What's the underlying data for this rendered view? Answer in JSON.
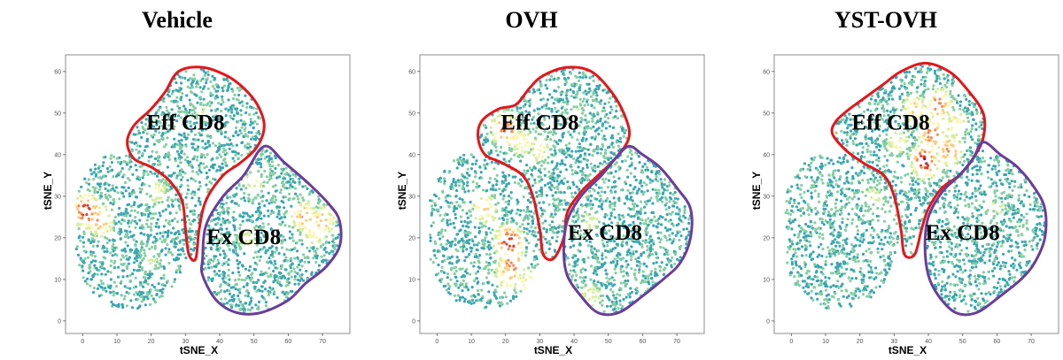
{
  "colors": {
    "eff_gate": "#e4161b",
    "ex_gate": "#6a3d9a",
    "frame": "#8c8c8c",
    "density": [
      "#3f69b1",
      "#3aa6b2",
      "#85cfa2",
      "#d6ee9b",
      "#fdf5b2",
      "#fdca7c",
      "#f48c52",
      "#d9472f",
      "#a40d3a"
    ]
  },
  "chart_data": [
    {
      "type": "scatter",
      "title": "Vehicle",
      "xlabel": "tSNE_X",
      "ylabel": "tSNE_Y",
      "xlim": [
        -5,
        78
      ],
      "ylim": [
        -3,
        64
      ],
      "xticks": [
        0,
        10,
        20,
        30,
        40,
        50,
        60,
        70
      ],
      "yticks": [
        0,
        10,
        20,
        30,
        40,
        50,
        60
      ],
      "grid": false,
      "gates": [
        {
          "name": "Eff CD8",
          "label_x": 30,
          "label_y": 46,
          "polygon": [
            [
              15,
              47
            ],
            [
              20,
              51
            ],
            [
              24,
              55
            ],
            [
              28,
              60
            ],
            [
              35,
              61
            ],
            [
              42,
              59
            ],
            [
              47,
              56
            ],
            [
              51,
              52
            ],
            [
              53,
              47
            ],
            [
              51,
              42
            ],
            [
              46,
              38
            ],
            [
              41,
              35
            ],
            [
              36,
              29
            ],
            [
              34,
              22
            ],
            [
              33,
              15
            ],
            [
              31,
              16
            ],
            [
              30,
              22
            ],
            [
              29,
              29
            ],
            [
              25,
              34
            ],
            [
              20,
              37
            ],
            [
              15,
              39
            ],
            [
              13,
              43
            ]
          ]
        },
        {
          "name": "Ex CD8",
          "label_x": 47,
          "label_y": 18.5,
          "polygon": [
            [
              53,
              42
            ],
            [
              59,
              38
            ],
            [
              66,
              33
            ],
            [
              72,
              28
            ],
            [
              75,
              24
            ],
            [
              75,
              18
            ],
            [
              71,
              13
            ],
            [
              65,
              9
            ],
            [
              60,
              5
            ],
            [
              52,
              2
            ],
            [
              45,
              2
            ],
            [
              39,
              5
            ],
            [
              35,
              11
            ],
            [
              35,
              15
            ],
            [
              36,
              23
            ],
            [
              41,
              30
            ],
            [
              47,
              35
            ]
          ]
        }
      ],
      "hotspots": [
        {
          "x": 1,
          "y": 26.5,
          "density": 0.95
        },
        {
          "x": 5,
          "y": 24,
          "density": 0.7
        },
        {
          "x": 65,
          "y": 25,
          "density": 0.72
        },
        {
          "x": 70,
          "y": 24,
          "density": 0.65
        },
        {
          "x": 68,
          "y": 22,
          "density": 0.6
        },
        {
          "x": 22,
          "y": 31,
          "density": 0.45
        },
        {
          "x": 50,
          "y": 33,
          "density": 0.45
        },
        {
          "x": 48,
          "y": 20,
          "density": 0.4
        },
        {
          "x": 35,
          "y": 50,
          "density": 0.3
        },
        {
          "x": 20,
          "y": 15,
          "density": 0.35
        }
      ]
    },
    {
      "type": "scatter",
      "title": "OVH",
      "xlabel": "tSNE_X",
      "ylabel": "tSNE_Y",
      "xlim": [
        -5,
        78
      ],
      "ylim": [
        -3,
        64
      ],
      "xticks": [
        0,
        10,
        20,
        30,
        40,
        50,
        60,
        70
      ],
      "yticks": [
        0,
        10,
        20,
        30,
        40,
        50,
        60
      ],
      "grid": false,
      "gates": [
        {
          "name": "Eff CD8",
          "label_x": 30,
          "label_y": 46,
          "polygon": [
            [
              13,
              48
            ],
            [
              18,
              51
            ],
            [
              23,
              52
            ],
            [
              27,
              56
            ],
            [
              31,
              59
            ],
            [
              38,
              61
            ],
            [
              45,
              60
            ],
            [
              51,
              55
            ],
            [
              55,
              49
            ],
            [
              56,
              44
            ],
            [
              52,
              39
            ],
            [
              47,
              35
            ],
            [
              42,
              31
            ],
            [
              38,
              26
            ],
            [
              37,
              20
            ],
            [
              34,
              15
            ],
            [
              31,
              16
            ],
            [
              30,
              22
            ],
            [
              28,
              30
            ],
            [
              25,
              35
            ],
            [
              19,
              38
            ],
            [
              14,
              40
            ],
            [
              12,
              44
            ]
          ]
        },
        {
          "name": "Ex CD8",
          "label_x": 49,
          "label_y": 19.5,
          "polygon": [
            [
              56,
              42
            ],
            [
              60,
              40
            ],
            [
              65,
              37
            ],
            [
              70,
              32
            ],
            [
              74,
              27
            ],
            [
              74,
              20
            ],
            [
              71,
              14
            ],
            [
              66,
              10
            ],
            [
              60,
              6
            ],
            [
              53,
              2
            ],
            [
              47,
              2
            ],
            [
              42,
              6
            ],
            [
              38,
              11
            ],
            [
              37,
              17
            ],
            [
              38,
              24
            ],
            [
              42,
              30
            ],
            [
              48,
              35
            ],
            [
              52,
              39
            ]
          ]
        }
      ],
      "hotspots": [
        {
          "x": 20,
          "y": 46,
          "density": 0.85
        },
        {
          "x": 25,
          "y": 43,
          "density": 0.55
        },
        {
          "x": 21,
          "y": 19,
          "density": 0.95
        },
        {
          "x": 22,
          "y": 14,
          "density": 0.82
        },
        {
          "x": 21,
          "y": 11,
          "density": 0.7
        },
        {
          "x": 27,
          "y": 9,
          "density": 0.6
        },
        {
          "x": 14,
          "y": 27,
          "density": 0.6
        },
        {
          "x": 30,
          "y": 41,
          "density": 0.5
        },
        {
          "x": 45,
          "y": 24,
          "density": 0.4
        },
        {
          "x": 40,
          "y": 50,
          "density": 0.35
        },
        {
          "x": 45,
          "y": 6,
          "density": 0.45
        }
      ]
    },
    {
      "type": "scatter",
      "title": "YST-OVH",
      "xlabel": "tSNE_X",
      "ylabel": "tSNE_Y",
      "xlim": [
        -5,
        78
      ],
      "ylim": [
        -3,
        64
      ],
      "xticks": [
        0,
        10,
        20,
        30,
        40,
        50,
        60,
        70
      ],
      "yticks": [
        0,
        10,
        20,
        30,
        40,
        50,
        60
      ],
      "grid": false,
      "gates": [
        {
          "name": "Eff CD8",
          "label_x": 29,
          "label_y": 46,
          "polygon": [
            [
              13,
              48
            ],
            [
              17,
              51
            ],
            [
              22,
              54
            ],
            [
              27,
              57
            ],
            [
              32,
              60
            ],
            [
              39,
              62
            ],
            [
              46,
              60
            ],
            [
              51,
              56
            ],
            [
              56,
              50
            ],
            [
              56,
              44
            ],
            [
              53,
              39
            ],
            [
              49,
              35
            ],
            [
              44,
              32
            ],
            [
              40,
              27
            ],
            [
              38,
              22
            ],
            [
              36,
              16
            ],
            [
              33,
              16
            ],
            [
              32,
              22
            ],
            [
              30,
              30
            ],
            [
              27,
              35
            ],
            [
              21,
              38
            ],
            [
              16,
              41
            ],
            [
              12,
              45
            ]
          ]
        },
        {
          "name": "Ex CD8",
          "label_x": 50,
          "label_y": 19.5,
          "polygon": [
            [
              56,
              43
            ],
            [
              61,
              40
            ],
            [
              66,
              37
            ],
            [
              71,
              32
            ],
            [
              74,
              27
            ],
            [
              74,
              20
            ],
            [
              71,
              14
            ],
            [
              67,
              10
            ],
            [
              61,
              6
            ],
            [
              54,
              2
            ],
            [
              48,
              2
            ],
            [
              43,
              6
            ],
            [
              40,
              11
            ],
            [
              39,
              18
            ],
            [
              40,
              25
            ],
            [
              44,
              31
            ],
            [
              49,
              35
            ],
            [
              53,
              39
            ]
          ]
        }
      ],
      "hotspots": [
        {
          "x": 39,
          "y": 38.5,
          "density": 0.95
        },
        {
          "x": 41,
          "y": 45,
          "density": 0.82
        },
        {
          "x": 43,
          "y": 52,
          "density": 0.78
        },
        {
          "x": 46,
          "y": 41,
          "density": 0.75
        },
        {
          "x": 36,
          "y": 51,
          "density": 0.6
        },
        {
          "x": 31,
          "y": 43,
          "density": 0.5
        },
        {
          "x": 48,
          "y": 47,
          "density": 0.55
        },
        {
          "x": 24,
          "y": 30,
          "density": 0.4
        },
        {
          "x": 60,
          "y": 27,
          "density": 0.35
        },
        {
          "x": 68,
          "y": 22,
          "density": 0.3
        }
      ]
    }
  ]
}
